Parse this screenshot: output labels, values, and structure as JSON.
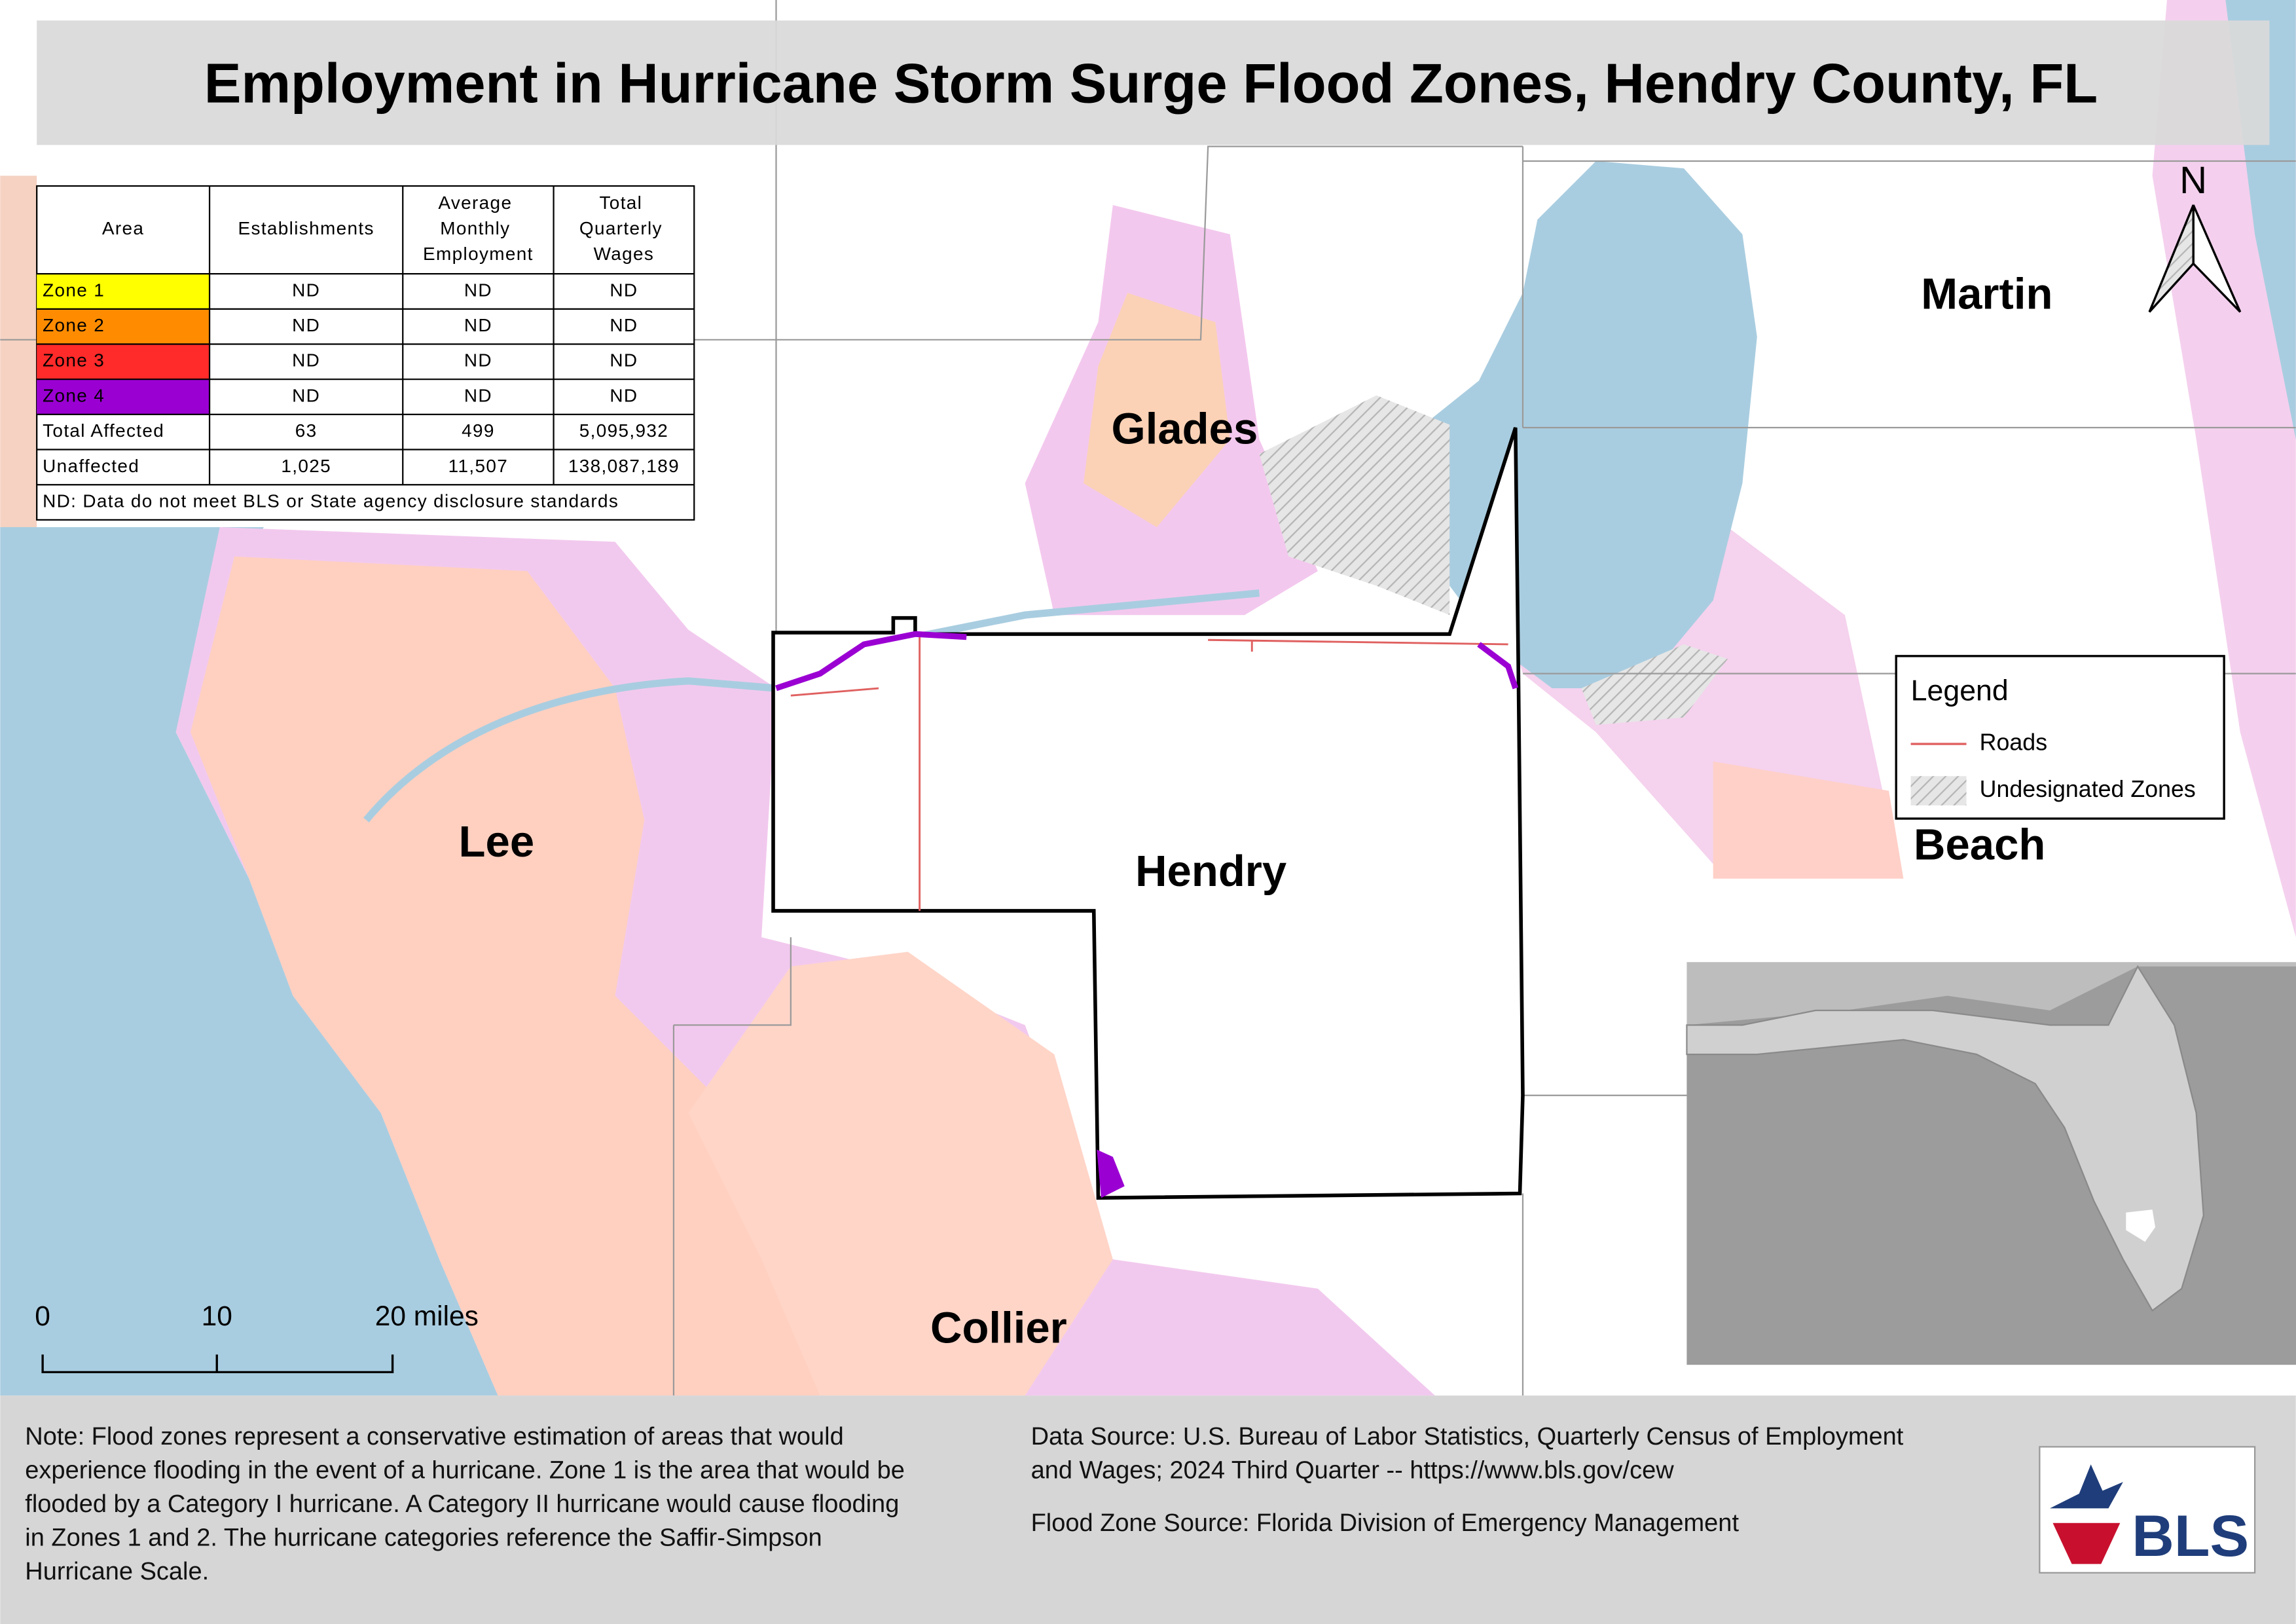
{
  "title": "Employment in Hurricane Storm Surge Flood Zones, Hendry County, FL",
  "table": {
    "header": [
      "Area",
      "Establishments",
      "Average Monthly Employment",
      "Total Quarterly Wages"
    ],
    "rows": [
      {
        "cells": [
          "Zone 1",
          "ND",
          "ND",
          "ND"
        ],
        "color": "#ffff00"
      },
      {
        "cells": [
          "Zone 2",
          "ND",
          "ND",
          "ND"
        ],
        "color": "#ff8c00"
      },
      {
        "cells": [
          "Zone 3",
          "ND",
          "ND",
          "ND"
        ],
        "color": "#ff2a2a"
      },
      {
        "cells": [
          "Zone 4",
          "ND",
          "ND",
          "ND"
        ],
        "color": "#9b00d3"
      },
      {
        "cells": [
          "Total Affected",
          "63",
          "499",
          "5,095,932"
        ]
      },
      {
        "cells": [
          "Unaffected",
          "1,025",
          "11,507",
          "138,087,189"
        ]
      }
    ],
    "footnote": "ND: Data do not meet BLS or State agency disclosure standards"
  },
  "places": [
    "Martin",
    "Glades",
    "Lee",
    "Hendry",
    "Beach",
    "Collier"
  ],
  "legend": {
    "title": "Legend",
    "items": [
      "Roads",
      "Undesignated Zones"
    ]
  },
  "north": "N",
  "scale_bar": [
    "0",
    "10",
    "20 miles"
  ],
  "note": [
    "Note: Flood zones represent a conservative estimation of areas that would",
    "experience flooding in the event of a hurricane. Zone 1 is the area that would be",
    "flooded by a Category I hurricane. A Category II hurricane would cause flooding",
    "in Zones 1 and 2. The hurricane categories reference the Saffir-Simpson",
    "Hurricane Scale."
  ],
  "sources": [
    "Data Source: U.S. Bureau of Labor Statistics, Quarterly Census of Employment",
    "and Wages; 2024 Third Quarter -- https://www.bls.gov/cew",
    "Flood Zone Source: Florida Division of Emergency Management"
  ],
  "logo": "BLS"
}
